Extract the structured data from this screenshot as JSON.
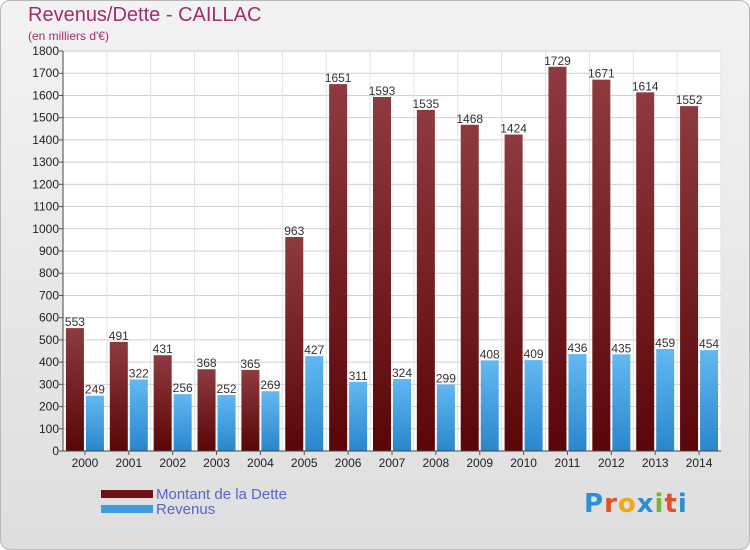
{
  "header": {
    "title": "Revenus/Dette - CAILLAC",
    "subtitle": "(en milliers d'€)"
  },
  "legend": {
    "items": [
      {
        "label": "Montant de la Dette",
        "color": "#6e1014"
      },
      {
        "label": "Revenus",
        "color": "#3c9ee0"
      }
    ]
  },
  "logo": {
    "text": "Proxiti",
    "colors": [
      "#2c8fd6",
      "#e0522a",
      "#f2a71b",
      "#2c8fd6",
      "#7ab635",
      "#e0522a",
      "#2c8fd6"
    ]
  },
  "chart_data": {
    "type": "bar",
    "categories": [
      "2000",
      "2001",
      "2002",
      "2003",
      "2004",
      "2005",
      "2006",
      "2007",
      "2008",
      "2009",
      "2010",
      "2011",
      "2012",
      "2013",
      "2014"
    ],
    "series": [
      {
        "name": "Montant de la Dette",
        "values": [
          553,
          491,
          431,
          368,
          365,
          963,
          1651,
          1593,
          1535,
          1468,
          1424,
          1729,
          1671,
          1614,
          1552
        ]
      },
      {
        "name": "Revenus",
        "values": [
          249,
          322,
          256,
          252,
          269,
          427,
          311,
          324,
          299,
          408,
          409,
          436,
          435,
          459,
          454
        ]
      }
    ],
    "ylim": [
      0,
      1800
    ],
    "yticks": [
      0,
      100,
      200,
      300,
      400,
      500,
      600,
      700,
      800,
      900,
      1000,
      1100,
      1200,
      1300,
      1400,
      1500,
      1600,
      1700,
      1800
    ],
    "grid": true,
    "legend_position": "bottom-left"
  }
}
